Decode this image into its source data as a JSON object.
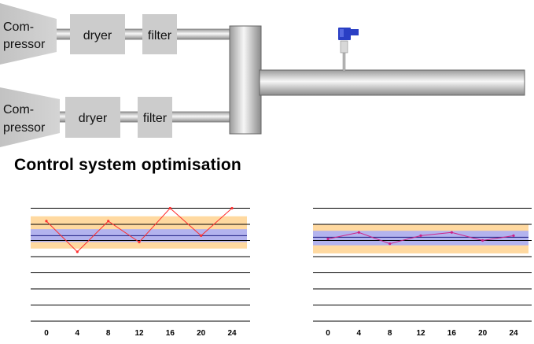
{
  "diagram": {
    "lines": [
      {
        "compressor_label_line1": "Com-",
        "compressor_label_line2": "pressor",
        "dryer_label": "dryer",
        "filter_label": "filter"
      },
      {
        "compressor_label_line1": "Com-",
        "compressor_label_line2": "pressor",
        "dryer_label": "dryer",
        "filter_label": "filter"
      }
    ],
    "colors": {
      "equipment_fill": "#cccccc",
      "pipe_light": "#f4f4f4",
      "pipe_dark": "#9a9a9a",
      "sensor_head": "#2a3fc4"
    }
  },
  "title": "Control system optimisation",
  "chart_data": [
    {
      "type": "line",
      "x": [
        0,
        4,
        8,
        12,
        16,
        20,
        24
      ],
      "series": [
        {
          "values": [
            6.2,
            4.3,
            6.2,
            4.9,
            7.0,
            5.3,
            7.0
          ]
        }
      ],
      "ylim": [
        0,
        8
      ],
      "gridlines": [
        1,
        2,
        3,
        4,
        5,
        6,
        7
      ],
      "setpoint": 5.3,
      "bands": [
        {
          "from": 4.5,
          "to": 6.5,
          "color": "#ffd9a0"
        },
        {
          "from": 4.9,
          "to": 5.7,
          "color": "#b3b3ee"
        }
      ],
      "line_color": "#ff3030",
      "grid": true,
      "xlabel": "",
      "ylabel": ""
    },
    {
      "type": "line",
      "x": [
        0,
        4,
        8,
        12,
        16,
        20,
        24
      ],
      "series": [
        {
          "values": [
            5.1,
            5.5,
            4.8,
            5.3,
            5.5,
            5.0,
            5.3
          ]
        }
      ],
      "ylim": [
        0,
        8
      ],
      "gridlines": [
        1,
        2,
        3,
        4,
        5,
        6,
        7
      ],
      "setpoint": 5.2,
      "bands": [
        {
          "from": 4.2,
          "to": 6.0,
          "color": "#ffd9a0"
        },
        {
          "from": 4.7,
          "to": 5.6,
          "color": "#b3b3ee"
        }
      ],
      "line_color": "#cc2288",
      "grid": true,
      "xlabel": "",
      "ylabel": ""
    }
  ]
}
